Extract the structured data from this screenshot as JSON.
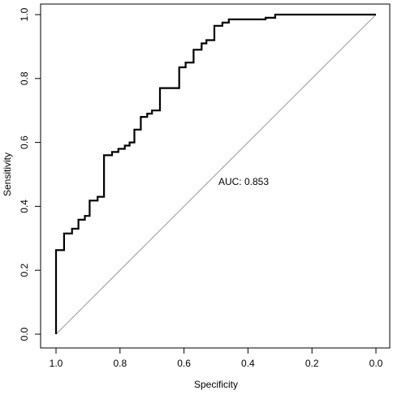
{
  "chart_data": {
    "type": "line",
    "title": "",
    "xlabel": "Specificity",
    "ylabel": "Sensitivity",
    "xlim": [
      1.0,
      0.0
    ],
    "ylim": [
      0.0,
      1.0
    ],
    "x_reversed": true,
    "x_ticks": [
      1.0,
      0.8,
      0.6,
      0.4,
      0.2,
      0.0
    ],
    "x_tick_labels": [
      "1.0",
      "0.8",
      "0.6",
      "0.4",
      "0.2",
      "0.0"
    ],
    "y_ticks": [
      0.0,
      0.2,
      0.4,
      0.6,
      0.8,
      1.0
    ],
    "y_tick_labels": [
      "0.0",
      "0.2",
      "0.4",
      "0.6",
      "0.8",
      "1.0"
    ],
    "grid": false,
    "legend": "none",
    "annotation": "AUC: 0.853",
    "reference_line": {
      "from": [
        1.0,
        0.0
      ],
      "to": [
        0.0,
        1.0
      ],
      "color": "#9a9a9a"
    },
    "series": [
      {
        "color": "#000000",
        "points": [
          [
            1.0,
            0.0
          ],
          [
            1.0,
            0.263
          ],
          [
            0.975,
            0.263
          ],
          [
            0.975,
            0.315
          ],
          [
            0.95,
            0.315
          ],
          [
            0.95,
            0.33
          ],
          [
            0.93,
            0.33
          ],
          [
            0.93,
            0.358
          ],
          [
            0.91,
            0.358
          ],
          [
            0.91,
            0.37
          ],
          [
            0.895,
            0.37
          ],
          [
            0.895,
            0.418
          ],
          [
            0.87,
            0.418
          ],
          [
            0.87,
            0.43
          ],
          [
            0.85,
            0.43
          ],
          [
            0.85,
            0.56
          ],
          [
            0.825,
            0.56
          ],
          [
            0.825,
            0.57
          ],
          [
            0.805,
            0.57
          ],
          [
            0.805,
            0.58
          ],
          [
            0.785,
            0.58
          ],
          [
            0.785,
            0.59
          ],
          [
            0.77,
            0.59
          ],
          [
            0.77,
            0.6
          ],
          [
            0.755,
            0.6
          ],
          [
            0.755,
            0.64
          ],
          [
            0.735,
            0.64
          ],
          [
            0.735,
            0.68
          ],
          [
            0.715,
            0.68
          ],
          [
            0.715,
            0.69
          ],
          [
            0.7,
            0.69
          ],
          [
            0.7,
            0.7
          ],
          [
            0.675,
            0.7
          ],
          [
            0.675,
            0.77
          ],
          [
            0.615,
            0.77
          ],
          [
            0.615,
            0.835
          ],
          [
            0.595,
            0.835
          ],
          [
            0.595,
            0.85
          ],
          [
            0.57,
            0.85
          ],
          [
            0.57,
            0.89
          ],
          [
            0.545,
            0.89
          ],
          [
            0.545,
            0.91
          ],
          [
            0.53,
            0.91
          ],
          [
            0.53,
            0.92
          ],
          [
            0.505,
            0.92
          ],
          [
            0.505,
            0.965
          ],
          [
            0.48,
            0.965
          ],
          [
            0.48,
            0.975
          ],
          [
            0.46,
            0.975
          ],
          [
            0.46,
            0.985
          ],
          [
            0.345,
            0.985
          ],
          [
            0.345,
            0.99
          ],
          [
            0.315,
            0.99
          ],
          [
            0.315,
            1.0
          ],
          [
            0.0,
            1.0
          ]
        ]
      }
    ]
  }
}
